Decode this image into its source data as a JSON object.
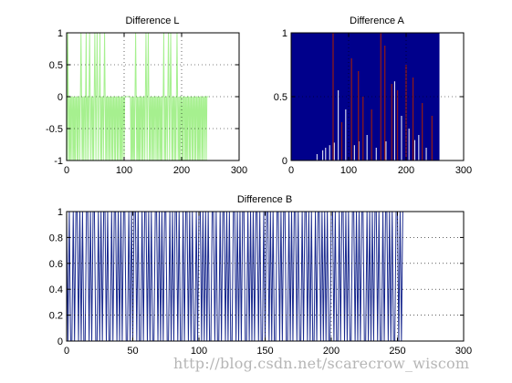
{
  "watermark": "http://blog.csdn.net/scarecrow_wiscom",
  "colors": {
    "green": "#a6f08f",
    "navy": "#1a2a8f",
    "darknavy": "#00008b",
    "red": "#8b1a1a"
  },
  "chart_data": [
    {
      "id": "diff-l",
      "type": "line",
      "title": "Difference L",
      "xlim": [
        0,
        300
      ],
      "ylim": [
        -1,
        1
      ],
      "xticks": [
        0,
        100,
        200,
        300
      ],
      "yticks": [
        -1,
        -0.5,
        0,
        0.5,
        1
      ],
      "grid": true,
      "series": [
        {
          "color": "#a6f08f",
          "x_start": 0,
          "x_step": 1,
          "values": [
            1,
            -1,
            1,
            0,
            -1,
            0,
            -1,
            0,
            -1,
            0,
            0,
            -1,
            0,
            -1,
            0,
            -1,
            0,
            0,
            -1,
            0,
            -1,
            0,
            0,
            -1,
            0,
            1,
            0,
            -1,
            0,
            -1,
            0,
            0,
            -1,
            0,
            1,
            -1,
            0,
            0,
            -1,
            0,
            1,
            0,
            -1,
            0,
            0,
            -1,
            0,
            -1,
            0,
            1,
            0,
            -1,
            0,
            1,
            0,
            -1,
            0,
            0,
            1,
            -1,
            0,
            -1,
            0,
            0,
            -1,
            0,
            1,
            0,
            -1,
            0,
            -1,
            0,
            0,
            -1,
            0,
            -1,
            0,
            0,
            -1,
            0,
            -1,
            0,
            0,
            -1,
            0,
            -1,
            0,
            0,
            -1,
            0,
            -1,
            0,
            0,
            -1,
            0,
            -1,
            0,
            -1,
            0,
            0,
            -1,
            0,
            0,
            0,
            0,
            0,
            0,
            0,
            0,
            0,
            0,
            0,
            -1,
            0,
            -1,
            0,
            -1,
            0,
            -1,
            0,
            1,
            0,
            -1,
            0,
            -1,
            0,
            -1,
            0,
            -1,
            0,
            0,
            -1,
            0,
            -1,
            0,
            0,
            -1,
            0,
            1,
            0,
            -1,
            0,
            1,
            0,
            -1,
            0,
            -1,
            0,
            0,
            -1,
            0,
            -1,
            0,
            0,
            -1,
            0,
            0,
            -1,
            0,
            -1,
            0,
            0,
            -1,
            0,
            -1,
            0,
            -1,
            0,
            0,
            1,
            -1,
            0,
            -1,
            0,
            0,
            -1,
            0,
            1,
            0,
            -1,
            0,
            1,
            0,
            -1,
            0,
            -1,
            0,
            0,
            -1,
            0,
            -1,
            0,
            1,
            0,
            -1,
            0,
            -1,
            0,
            -1,
            0,
            0,
            -1,
            0,
            -1,
            0,
            0,
            -1,
            0,
            -1,
            0,
            -1,
            0,
            0,
            -1,
            0,
            -1,
            0,
            0,
            -1,
            0,
            -1,
            0,
            0,
            -1,
            0,
            -1,
            0,
            0,
            -1,
            0,
            -1,
            0,
            -1,
            0,
            0,
            -1,
            0,
            -1,
            0,
            0,
            -1,
            0,
            0,
            -1,
            0,
            0,
            0,
            0
          ]
        }
      ]
    },
    {
      "id": "diff-a",
      "type": "bar",
      "title": "Difference A",
      "xlim": [
        0,
        300
      ],
      "ylim": [
        0,
        1
      ],
      "xticks": [
        0,
        100,
        200,
        300
      ],
      "yticks": [
        0,
        0.5,
        1
      ],
      "grid": true,
      "background_span": {
        "x": [
          0,
          258
        ],
        "y": [
          0,
          1
        ],
        "color": "#00008b"
      },
      "series": [
        {
          "color": "#ffffff",
          "x": [
            45,
            55,
            60,
            67,
            75,
            82,
            95,
            110,
            118,
            132,
            148,
            165,
            180,
            192,
            205,
            215,
            222,
            235
          ],
          "values": [
            0.05,
            0.08,
            0.1,
            0.12,
            0.14,
            0.55,
            0.4,
            0.12,
            0.15,
            0.2,
            0.1,
            0.15,
            0.62,
            0.35,
            0.25,
            0.16,
            0.2,
            0.1
          ]
        },
        {
          "color": "#8b1a1a",
          "x": [
            73,
            88,
            105,
            117,
            125,
            140,
            156,
            163,
            175,
            185,
            200,
            212,
            228,
            245
          ],
          "values": [
            1.0,
            0.3,
            0.8,
            0.7,
            0.5,
            0.4,
            1.0,
            0.9,
            0.6,
            0.55,
            0.75,
            0.65,
            0.45,
            0.35
          ]
        }
      ]
    },
    {
      "id": "diff-b",
      "type": "line",
      "title": "Difference B",
      "xlim": [
        0,
        300
      ],
      "ylim": [
        0,
        1
      ],
      "xticks": [
        0,
        50,
        100,
        150,
        200,
        250,
        300
      ],
      "yticks": [
        0,
        0.2,
        0.4,
        0.6,
        0.8,
        1
      ],
      "grid": true,
      "series": [
        {
          "color": "#1a2a8f",
          "x_start": 0,
          "x_step": 1,
          "values": [
            1,
            0,
            1,
            0,
            0,
            1,
            0,
            1,
            1,
            0,
            1,
            0,
            1,
            0,
            0,
            1,
            1,
            0,
            1,
            0,
            1,
            1,
            0,
            0,
            1,
            0,
            1,
            0,
            1,
            1,
            0,
            1,
            0,
            0,
            1,
            0,
            1,
            1,
            0,
            1,
            0,
            1,
            0,
            1,
            1,
            0,
            0,
            1,
            0,
            1,
            0,
            1,
            1,
            0,
            1,
            0,
            0,
            1,
            0,
            1,
            1,
            0,
            1,
            0,
            1,
            0,
            0,
            1,
            1,
            0,
            1,
            0,
            1,
            0,
            1,
            1,
            0,
            0,
            1,
            0,
            1,
            0,
            1,
            1,
            0,
            1,
            0,
            0,
            1,
            0,
            1,
            1,
            0,
            1,
            0,
            1,
            0,
            0,
            1,
            0,
            1,
            1,
            0,
            1,
            0,
            1,
            0,
            1,
            0,
            0,
            1,
            1,
            0,
            1,
            0,
            0,
            1,
            0,
            1,
            1,
            0,
            1,
            0,
            1,
            0,
            0,
            1,
            1,
            0,
            1,
            0,
            1,
            0,
            1,
            1,
            0,
            0,
            1,
            0,
            1,
            0,
            1,
            0,
            1,
            1,
            0,
            1,
            0,
            0,
            1,
            0,
            1,
            1,
            0,
            1,
            0,
            1,
            0,
            0,
            1,
            1,
            0,
            1,
            0,
            1,
            1,
            0,
            0,
            1,
            0,
            1,
            0,
            1,
            1,
            0,
            1,
            0,
            0,
            1,
            0,
            1,
            1,
            0,
            1,
            0,
            1,
            0,
            0,
            1,
            0,
            1,
            1,
            0,
            1,
            0,
            1,
            0,
            1,
            0,
            0,
            1,
            1,
            0,
            1,
            0,
            0,
            1,
            0,
            1,
            1,
            0,
            1,
            0,
            1,
            0,
            0,
            1,
            1,
            0,
            1,
            0,
            1,
            0,
            1,
            1,
            0,
            0,
            1,
            0,
            1,
            0,
            1,
            0,
            1,
            1,
            0,
            1,
            0,
            0,
            1,
            0,
            1,
            1,
            0,
            1,
            0,
            1,
            0,
            0,
            1,
            1,
            0,
            1,
            0,
            1,
            1
          ]
        }
      ]
    }
  ]
}
